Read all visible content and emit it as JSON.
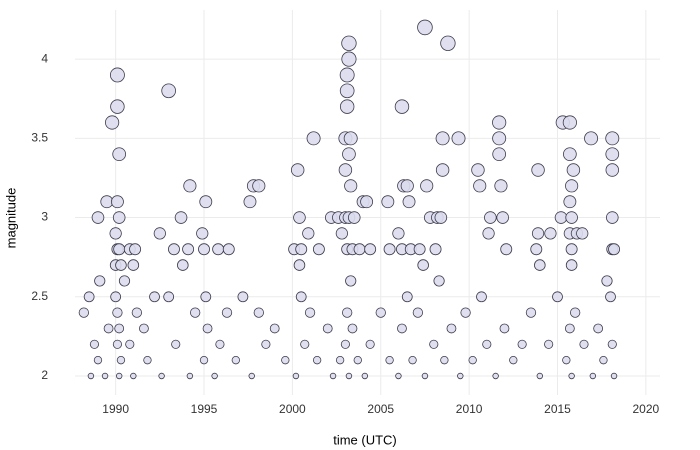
{
  "chart_data": {
    "type": "scatter",
    "xlabel": "time (UTC)",
    "ylabel": "magnitude",
    "x": [
      1989.0,
      1989.5,
      1989.8,
      1990.1,
      1990.1,
      1990.2,
      1990.1,
      1990.2,
      1990.0,
      1990.1,
      1990.2,
      1990.0,
      1990.3,
      1990.8,
      1991.1,
      1991.0,
      1992.5,
      1993.0,
      1993.3,
      1993.7,
      1994.1,
      1994.2,
      1994.9,
      1995.1,
      1995.0,
      1995.8,
      1996.4,
      1997.6,
      1997.8,
      1998.1,
      2000.1,
      2000.3,
      2000.4,
      2000.5,
      2000.4,
      2000.9,
      2001.2,
      2001.5,
      2002.2,
      2002.6,
      2002.8,
      2003.0,
      2003.0,
      2003.0,
      2003.1,
      2003.1,
      2003.1,
      2003.2,
      2003.2,
      2003.3,
      2003.2,
      2003.3,
      2003.2,
      2003.1,
      2003.4,
      2003.5,
      2003.8,
      2004.0,
      2004.2,
      2004.4,
      2005.4,
      2005.5,
      2006.0,
      2006.2,
      2006.2,
      2006.3,
      2006.5,
      2006.6,
      2006.7,
      2007.2,
      2007.4,
      2007.5,
      2007.6,
      2007.8,
      2008.1,
      2008.2,
      2008.4,
      2008.5,
      2008.5,
      2008.8,
      2009.4,
      2010.5,
      2010.6,
      2011.1,
      2011.2,
      2011.7,
      2011.7,
      2011.7,
      2011.8,
      2011.9,
      2012.1,
      2013.9,
      2013.9,
      2013.8,
      2014.0,
      2014.6,
      2015.2,
      2015.3,
      2015.7,
      2015.7,
      2015.8,
      2015.7,
      2015.8,
      2015.7,
      2015.8,
      2015.8,
      2015.9,
      2016.1,
      2016.4,
      2016.9,
      2018.1,
      2018.1,
      2018.1,
      2018.1,
      2018.1,
      2018.2,
      1988.2,
      1988.5,
      1988.6,
      1988.8,
      1989.0,
      1989.1,
      1989.4,
      1989.6,
      1990.0,
      1990.1,
      1990.1,
      1990.2,
      1990.2,
      1990.3,
      1990.5,
      1990.8,
      1991.0,
      1991.2,
      1991.6,
      1991.8,
      1992.2,
      1992.6,
      1993.0,
      1993.4,
      1993.8,
      1994.2,
      1994.5,
      1995.0,
      1995.1,
      1995.2,
      1995.6,
      1995.9,
      1996.3,
      1996.8,
      1997.2,
      1997.7,
      1998.1,
      1998.5,
      1999.0,
      1999.6,
      2000.2,
      2000.5,
      2000.7,
      2001.0,
      2001.4,
      2002.0,
      2002.3,
      2002.7,
      2003.0,
      2003.1,
      2003.2,
      2003.3,
      2003.4,
      2003.7,
      2004.1,
      2004.4,
      2005.0,
      2005.5,
      2006.0,
      2006.2,
      2006.5,
      2006.8,
      2007.1,
      2007.5,
      2008.0,
      2008.3,
      2008.6,
      2009.0,
      2009.5,
      2009.8,
      2010.2,
      2010.7,
      2011.0,
      2011.5,
      2012.0,
      2012.5,
      2013.0,
      2013.5,
      2014.0,
      2014.5,
      2015.0,
      2015.5,
      2015.7,
      2015.8,
      2016.0,
      2016.5,
      2017.0,
      2017.3,
      2017.6,
      2018.0,
      2018.1,
      2018.2,
      2017.8
    ],
    "values": [
      3.0,
      3.1,
      3.6,
      3.9,
      3.7,
      3.4,
      3.1,
      3.0,
      2.9,
      2.8,
      2.8,
      2.7,
      2.7,
      2.8,
      2.8,
      2.7,
      2.9,
      3.8,
      2.8,
      3.0,
      2.8,
      3.2,
      2.9,
      3.1,
      2.8,
      2.8,
      2.8,
      3.1,
      3.2,
      3.2,
      2.8,
      3.3,
      3.0,
      2.8,
      2.7,
      2.9,
      3.5,
      2.8,
      3.0,
      3.0,
      2.9,
      3.0,
      3.3,
      3.5,
      3.7,
      3.8,
      3.9,
      4.1,
      4.0,
      3.5,
      3.4,
      3.2,
      3.0,
      2.8,
      2.8,
      3.0,
      2.8,
      3.1,
      3.1,
      2.8,
      3.1,
      2.8,
      2.9,
      2.8,
      3.7,
      3.2,
      3.2,
      3.1,
      2.8,
      2.8,
      2.7,
      4.2,
      3.2,
      3.0,
      2.8,
      3.0,
      3.0,
      3.5,
      3.3,
      4.1,
      3.5,
      3.3,
      3.2,
      2.9,
      3.0,
      3.6,
      3.5,
      3.4,
      3.2,
      3.0,
      2.8,
      3.3,
      2.9,
      2.8,
      2.7,
      2.9,
      3.0,
      3.6,
      3.6,
      3.4,
      3.2,
      3.1,
      3.0,
      2.9,
      2.8,
      2.7,
      3.3,
      2.9,
      2.9,
      3.5,
      3.5,
      3.4,
      3.3,
      3.0,
      2.8,
      2.8,
      2.4,
      2.5,
      2.0,
      2.2,
      2.1,
      2.6,
      2.0,
      2.3,
      2.5,
      2.4,
      2.2,
      2.0,
      2.3,
      2.1,
      2.6,
      2.2,
      2.0,
      2.4,
      2.3,
      2.1,
      2.5,
      2.0,
      2.5,
      2.2,
      2.7,
      2.0,
      2.4,
      2.1,
      2.5,
      2.3,
      2.0,
      2.2,
      2.4,
      2.1,
      2.5,
      2.0,
      2.4,
      2.2,
      2.3,
      2.1,
      2.0,
      2.5,
      2.2,
      2.4,
      2.1,
      2.3,
      2.0,
      2.1,
      2.2,
      2.4,
      2.0,
      2.6,
      2.3,
      2.1,
      2.0,
      2.2,
      2.4,
      2.1,
      2.0,
      2.3,
      2.5,
      2.1,
      2.4,
      2.0,
      2.2,
      2.6,
      2.1,
      2.3,
      2.0,
      2.4,
      2.1,
      2.5,
      2.2,
      2.0,
      2.3,
      2.1,
      2.2,
      2.4,
      2.0,
      2.2,
      2.5,
      2.1,
      2.3,
      2.0,
      2.4,
      2.2,
      2.0,
      2.3,
      2.1,
      2.5,
      2.2,
      2.0,
      2.6
    ],
    "color": "#dcdcee",
    "edgecolor": "#3c3c4c",
    "xlim": [
      1987.7,
      2020.8
    ],
    "xticks": [
      1990,
      1995,
      2000,
      2005,
      2010,
      2015,
      2020
    ],
    "ylim": [
      1.88,
      4.31
    ],
    "yticks": [
      2,
      2.5,
      3,
      3.5,
      4
    ],
    "grid": true
  }
}
